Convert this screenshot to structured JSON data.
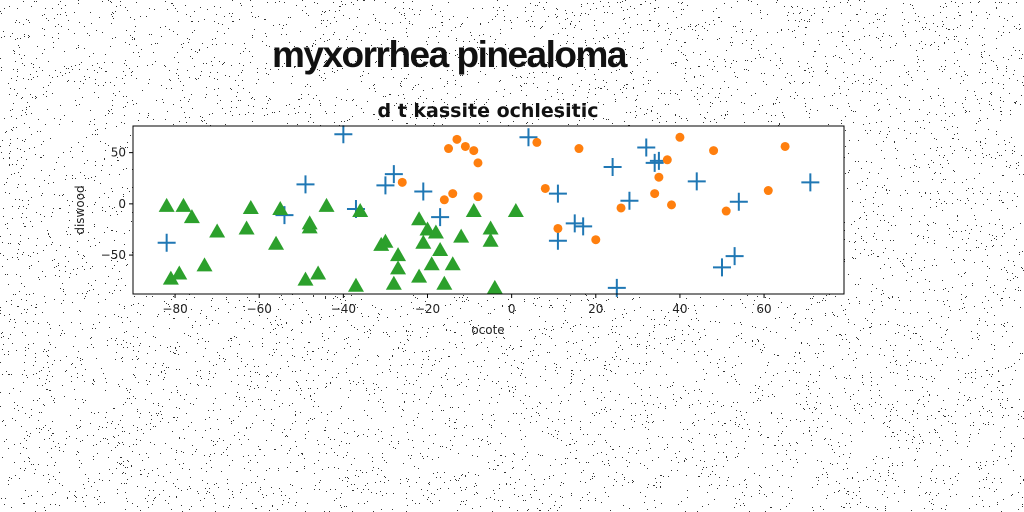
{
  "page": {
    "title": "myxorrhea pinealoma"
  },
  "chart_data": {
    "type": "scatter",
    "title": "d t kassite ochlesitic",
    "xlabel": "ocote",
    "ylabel": "diswood",
    "xlim": [
      -90,
      79
    ],
    "ylim": [
      -88,
      76
    ],
    "xticks": [
      -80,
      -60,
      -40,
      -20,
      0,
      20,
      40,
      60
    ],
    "yticks": [
      50,
      0,
      -50
    ],
    "grid": false,
    "colors": {
      "plus": "#1f77b4",
      "circle": "#ff7f0e",
      "triangle": "#2ca02c"
    },
    "series": [
      {
        "marker": "plus",
        "x": [
          -82,
          -49,
          -54,
          -40,
          -37,
          -30,
          -28,
          -21,
          -17,
          4,
          11,
          11,
          15,
          17,
          24,
          25,
          28,
          32,
          34,
          35,
          44,
          50,
          53,
          54,
          71
        ],
        "y": [
          -38,
          19,
          -11,
          68,
          -5,
          18,
          29,
          12,
          -13,
          65,
          10,
          -36,
          -19,
          -22,
          36,
          -82,
          3,
          55,
          40,
          42,
          22,
          -62,
          -51,
          2,
          21
        ]
      },
      {
        "marker": "circle",
        "x": [
          -26,
          -16,
          -15,
          -14,
          -13,
          -11,
          -9,
          -8,
          -8,
          6,
          8,
          11,
          16,
          20,
          26,
          34,
          35,
          37,
          38,
          40,
          48,
          51,
          61,
          65
        ],
        "y": [
          21,
          4,
          54,
          10,
          63,
          56,
          52,
          40,
          7,
          60,
          15,
          -24,
          54,
          -35,
          -4,
          10,
          26,
          43,
          -1,
          65,
          52,
          -7,
          13,
          56
        ],
        "size": 4.5
      },
      {
        "marker": "triangle",
        "x": [
          -82,
          -81,
          -79,
          -78,
          -76,
          -73,
          -70,
          -63,
          -62,
          -56,
          -55,
          -49,
          -48,
          -48,
          -46,
          -44,
          -37,
          -36,
          -31,
          -30,
          -28,
          -27,
          -27,
          -22,
          -22,
          -21,
          -20,
          -19,
          -18,
          -17,
          -16,
          -14,
          -12,
          -9,
          -5,
          -5,
          -4,
          1
        ],
        "y": [
          -2,
          -73,
          -68,
          -2,
          -13,
          -60,
          -27,
          -24,
          -4,
          -39,
          -5,
          -74,
          -23,
          -19,
          -68,
          -2,
          -80,
          -7,
          -40,
          -37,
          -78,
          -63,
          -50,
          -71,
          -15,
          -38,
          -25,
          -59,
          -28,
          -45,
          -78,
          -59,
          -32,
          -7,
          -24,
          -36,
          -82,
          -7
        ]
      }
    ]
  }
}
